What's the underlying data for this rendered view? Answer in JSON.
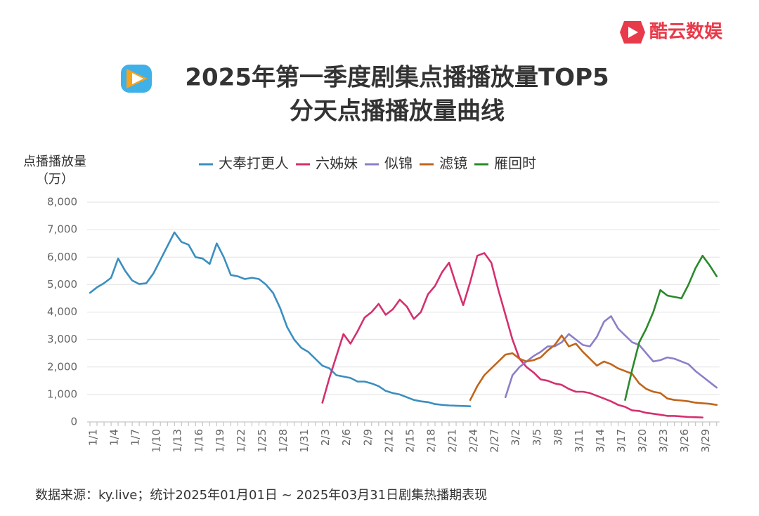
{
  "brand": "酷云数娱",
  "chart_data": {
    "type": "line",
    "title": "2025年第一季度剧集点播播放量TOP5",
    "subtitle": "分天点播播放量曲线",
    "ylabel": "点播播放量",
    "yunit": "（万）",
    "categories": [
      "1/1",
      null,
      null,
      "1/4",
      null,
      null,
      "1/7",
      null,
      null,
      "1/10",
      null,
      null,
      "1/13",
      null,
      null,
      "1/16",
      null,
      null,
      "1/19",
      null,
      null,
      "1/22",
      null,
      null,
      "1/25",
      null,
      null,
      "1/28",
      null,
      null,
      "1/31",
      null,
      null,
      "2/3",
      null,
      null,
      "2/6",
      null,
      null,
      "2/9",
      null,
      null,
      "2/12",
      null,
      null,
      "2/15",
      null,
      null,
      "2/18",
      null,
      null,
      "2/21",
      null,
      null,
      "2/24",
      null,
      null,
      "2/27",
      null,
      null,
      "3/2",
      null,
      null,
      "3/5",
      null,
      null,
      "3/8",
      null,
      null,
      "3/11",
      null,
      null,
      "3/14",
      null,
      null,
      "3/17",
      null,
      null,
      "3/20",
      null,
      null,
      "3/23",
      null,
      null,
      "3/26",
      null,
      null,
      "3/29",
      null,
      null
    ],
    "series": [
      {
        "name": "大奉打更人",
        "color": "#3a8fc0",
        "values": [
          4700,
          4900,
          5050,
          5250,
          5950,
          5500,
          5150,
          5020,
          5050,
          5400,
          5900,
          6400,
          6900,
          6550,
          6450,
          6000,
          5950,
          5750,
          6500,
          6000,
          5350,
          5300,
          5200,
          5250,
          5200,
          5000,
          4700,
          4150,
          3450,
          3000,
          2700,
          2550,
          2300,
          2050,
          1950,
          1700,
          1650,
          1600,
          1470,
          1470,
          1400,
          1300,
          1130,
          1050,
          1000,
          900,
          800,
          750,
          720,
          650,
          620,
          600,
          590,
          580,
          570,
          null,
          null,
          null,
          null,
          null,
          null,
          null,
          null,
          null,
          null,
          null,
          null,
          null,
          null,
          null,
          null,
          null,
          null,
          null,
          null,
          null,
          null,
          null,
          null,
          null,
          null,
          null,
          null,
          null,
          null,
          null,
          null,
          null,
          null,
          null
        ]
      },
      {
        "name": "六姊妹",
        "color": "#d4306f",
        "values": [
          null,
          null,
          null,
          null,
          null,
          null,
          null,
          null,
          null,
          null,
          null,
          null,
          null,
          null,
          null,
          null,
          null,
          null,
          null,
          null,
          null,
          null,
          null,
          null,
          null,
          null,
          null,
          null,
          null,
          null,
          null,
          null,
          null,
          700,
          1600,
          2400,
          3200,
          2850,
          3300,
          3800,
          4000,
          4300,
          3900,
          4100,
          4450,
          4200,
          3750,
          4000,
          4650,
          4950,
          5450,
          5800,
          5000,
          4250,
          5100,
          6050,
          6150,
          5800,
          4800,
          3900,
          3000,
          2300,
          2000,
          1800,
          1550,
          1500,
          1400,
          1350,
          1200,
          1100,
          1100,
          1050,
          950,
          850,
          750,
          620,
          550,
          420,
          400,
          330,
          300,
          260,
          220,
          220,
          200,
          180,
          170,
          160,
          null,
          null
        ]
      },
      {
        "name": "似锦",
        "color": "#8b7fc9",
        "values": [
          null,
          null,
          null,
          null,
          null,
          null,
          null,
          null,
          null,
          null,
          null,
          null,
          null,
          null,
          null,
          null,
          null,
          null,
          null,
          null,
          null,
          null,
          null,
          null,
          null,
          null,
          null,
          null,
          null,
          null,
          null,
          null,
          null,
          null,
          null,
          null,
          null,
          null,
          null,
          null,
          null,
          null,
          null,
          null,
          null,
          null,
          null,
          null,
          null,
          null,
          null,
          null,
          null,
          null,
          null,
          null,
          null,
          null,
          null,
          900,
          1700,
          2000,
          2200,
          2400,
          2550,
          2750,
          2750,
          2900,
          3200,
          3000,
          2800,
          2750,
          3100,
          3650,
          3850,
          3400,
          3150,
          2900,
          2800,
          2500,
          2200,
          2250,
          2350,
          2300,
          2200,
          2100,
          1850,
          1650,
          1450,
          1250
        ]
      },
      {
        "name": "滤镜",
        "color": "#c0651a",
        "values": [
          null,
          null,
          null,
          null,
          null,
          null,
          null,
          null,
          null,
          null,
          null,
          null,
          null,
          null,
          null,
          null,
          null,
          null,
          null,
          null,
          null,
          null,
          null,
          null,
          null,
          null,
          null,
          null,
          null,
          null,
          null,
          null,
          null,
          null,
          null,
          null,
          null,
          null,
          null,
          null,
          null,
          null,
          null,
          null,
          null,
          null,
          null,
          null,
          null,
          null,
          null,
          null,
          null,
          null,
          800,
          1300,
          1700,
          1950,
          2200,
          2450,
          2500,
          2300,
          2200,
          2250,
          2350,
          2600,
          2800,
          3150,
          2750,
          2850,
          2550,
          2300,
          2050,
          2200,
          2100,
          1950,
          1850,
          1750,
          1400,
          1200,
          1100,
          1050,
          850,
          800,
          780,
          750,
          700,
          680,
          660,
          620
        ]
      },
      {
        "name": "雁回时",
        "color": "#2a8a2a",
        "values": [
          null,
          null,
          null,
          null,
          null,
          null,
          null,
          null,
          null,
          null,
          null,
          null,
          null,
          null,
          null,
          null,
          null,
          null,
          null,
          null,
          null,
          null,
          null,
          null,
          null,
          null,
          null,
          null,
          null,
          null,
          null,
          null,
          null,
          null,
          null,
          null,
          null,
          null,
          null,
          null,
          null,
          null,
          null,
          null,
          null,
          null,
          null,
          null,
          null,
          null,
          null,
          null,
          null,
          null,
          null,
          null,
          null,
          null,
          null,
          null,
          null,
          null,
          null,
          null,
          null,
          null,
          null,
          null,
          null,
          null,
          null,
          null,
          null,
          null,
          null,
          null,
          800,
          1900,
          2900,
          3400,
          4000,
          4800,
          4600,
          4550,
          4500,
          5000,
          5600,
          6050,
          5700,
          5300
        ]
      }
    ],
    "ylim": [
      0,
      8000
    ],
    "yticks": [
      0,
      {
        "value": 1000,
        "label": "1,000"
      },
      {
        "value": 2000,
        "label": "2,000"
      },
      {
        "value": 3000,
        "label": "3,000"
      },
      {
        "value": 4000,
        "label": "4,000"
      },
      {
        "value": 5000,
        "label": "5,000"
      },
      {
        "value": 6000,
        "label": "6,000"
      },
      {
        "value": 7000,
        "label": "7,000"
      },
      {
        "value": 8000,
        "label": "8,000"
      }
    ],
    "grid": true
  },
  "source": "数据来源：ky.live；统计2025年01月01日 ~ 2025年03月31日剧集热播期表现"
}
